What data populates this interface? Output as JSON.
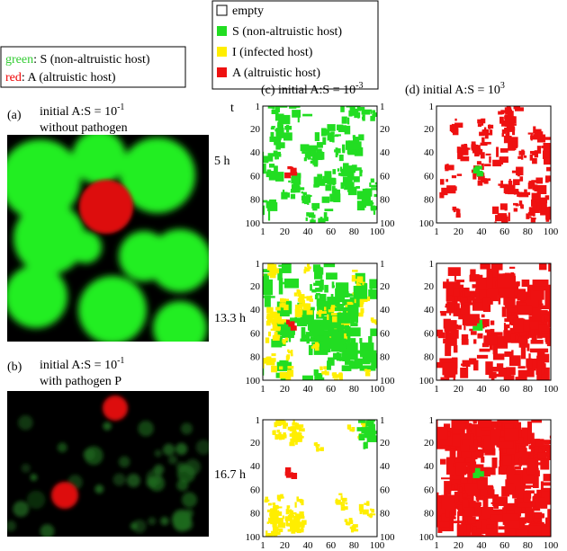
{
  "color_key": {
    "green_word": "green",
    "green_text": ": S (non-altruistic host)",
    "red_word": "red",
    "red_text": ": A (altruistic host)"
  },
  "legend": {
    "empty": "empty",
    "S": "S (non-altruistic host)",
    "I": "I (infected host)",
    "A": "A (altruistic host)"
  },
  "panels": {
    "a": {
      "label": "(a)",
      "title": "initial A:S = 10",
      "exponent": "-1",
      "subtitle": "without pathogen"
    },
    "b": {
      "label": "(b)",
      "title": "initial A:S = 10",
      "exponent": "-1",
      "subtitle": "with pathogen P"
    },
    "c": {
      "label": "(c)",
      "title": "initial A:S = 10",
      "exponent": "-3"
    },
    "d": {
      "label": "(d)",
      "title": "initial A:S = 10",
      "exponent": "3"
    }
  },
  "time_header": "t",
  "times": [
    "5 h",
    "13.3 h",
    "16.7 h"
  ],
  "grid_ticks": [
    "1",
    "20",
    "40",
    "60",
    "80",
    "100"
  ]
}
